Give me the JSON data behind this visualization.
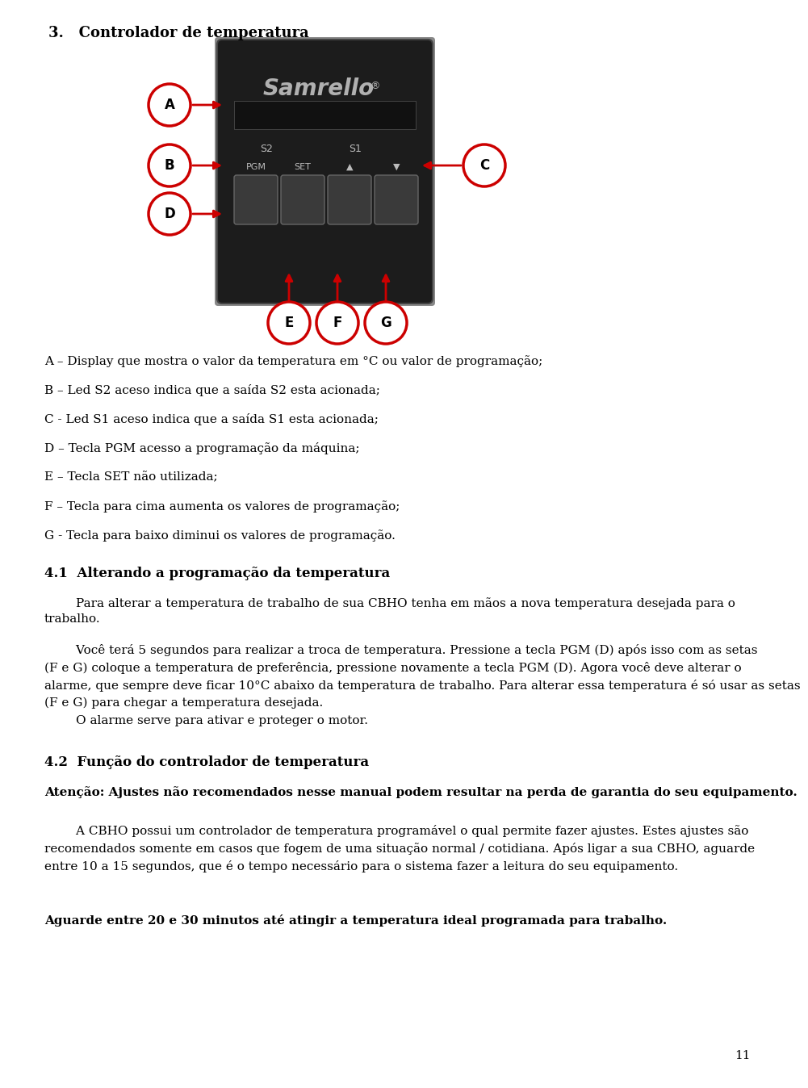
{
  "title": "3.   Controlador de temperatura",
  "section_41_title": "4.1  Alterando a programação da temperatura",
  "section_42_title": "4.2  Função do controlador de temperatura",
  "attention_text": "Atenção: Ajustes não recomendados nesse manual podem resultar na perda de garantia do seu equipamento.",
  "label_descriptions": [
    "A – Display que mostra o valor da temperatura em °C ou valor de programação;",
    "B – Led S2 aceso indica que a saída S2 esta acionada;",
    "C - Led S1 aceso indica que a saída S1 esta acionada;",
    "D – Tecla PGM acesso a programação da máquina;",
    "E – Tecla SET não utilizada;",
    "F – Tecla para cima aumenta os valores de programação;",
    "G - Tecla para baixo diminui os valores de programação."
  ],
  "para_41": "        Para alterar a temperatura de trabalho de sua CBHO tenha em mãos a nova temperatura desejada para o\ntrabalho.",
  "para_41b_lines": [
    "        Você terá 5 segundos para realizar a troca de temperatura. Pressione a tecla PGM (D) após isso com as setas",
    "(F e G) coloque a temperatura de preferência, pressione novamente a tecla PGM (D). Agora você deve alterar o",
    "alarme, que sempre deve ficar 10°C abaixo da temperatura de trabalho. Para alterar essa temperatura é só usar as setas",
    "(F e G) para chegar a temperatura desejada.",
    "        O alarme serve para ativar e proteger o motor."
  ],
  "para_42_lines": [
    "        A CBHO possui um controlador de temperatura programável o qual permite fazer ajustes. Estes ajustes são",
    "recomendados somente em casos que fogem de uma situação normal / cotidiana. Após ligar a sua CBHO, aguarde",
    "entre 10 a 15 segundos, que é o tempo necessário para o sistema fazer a leitura do seu equipamento."
  ],
  "final_bold": "Aguarde entre 20 e 30 minutos até atingir a temperatura ideal programada para trabalho.",
  "page_number": "11",
  "bg_color": "#ffffff",
  "text_color": "#000000",
  "red_color": "#cc0000",
  "circle_face_color": "#ffffff",
  "device_face_color": "#1c1c1c",
  "device_edge_color": "#444444",
  "button_face_color": "#3a3a3a",
  "button_edge_color": "#666666",
  "led_color": "#bbbbbb",
  "samrello_color": "#b0b0b0"
}
